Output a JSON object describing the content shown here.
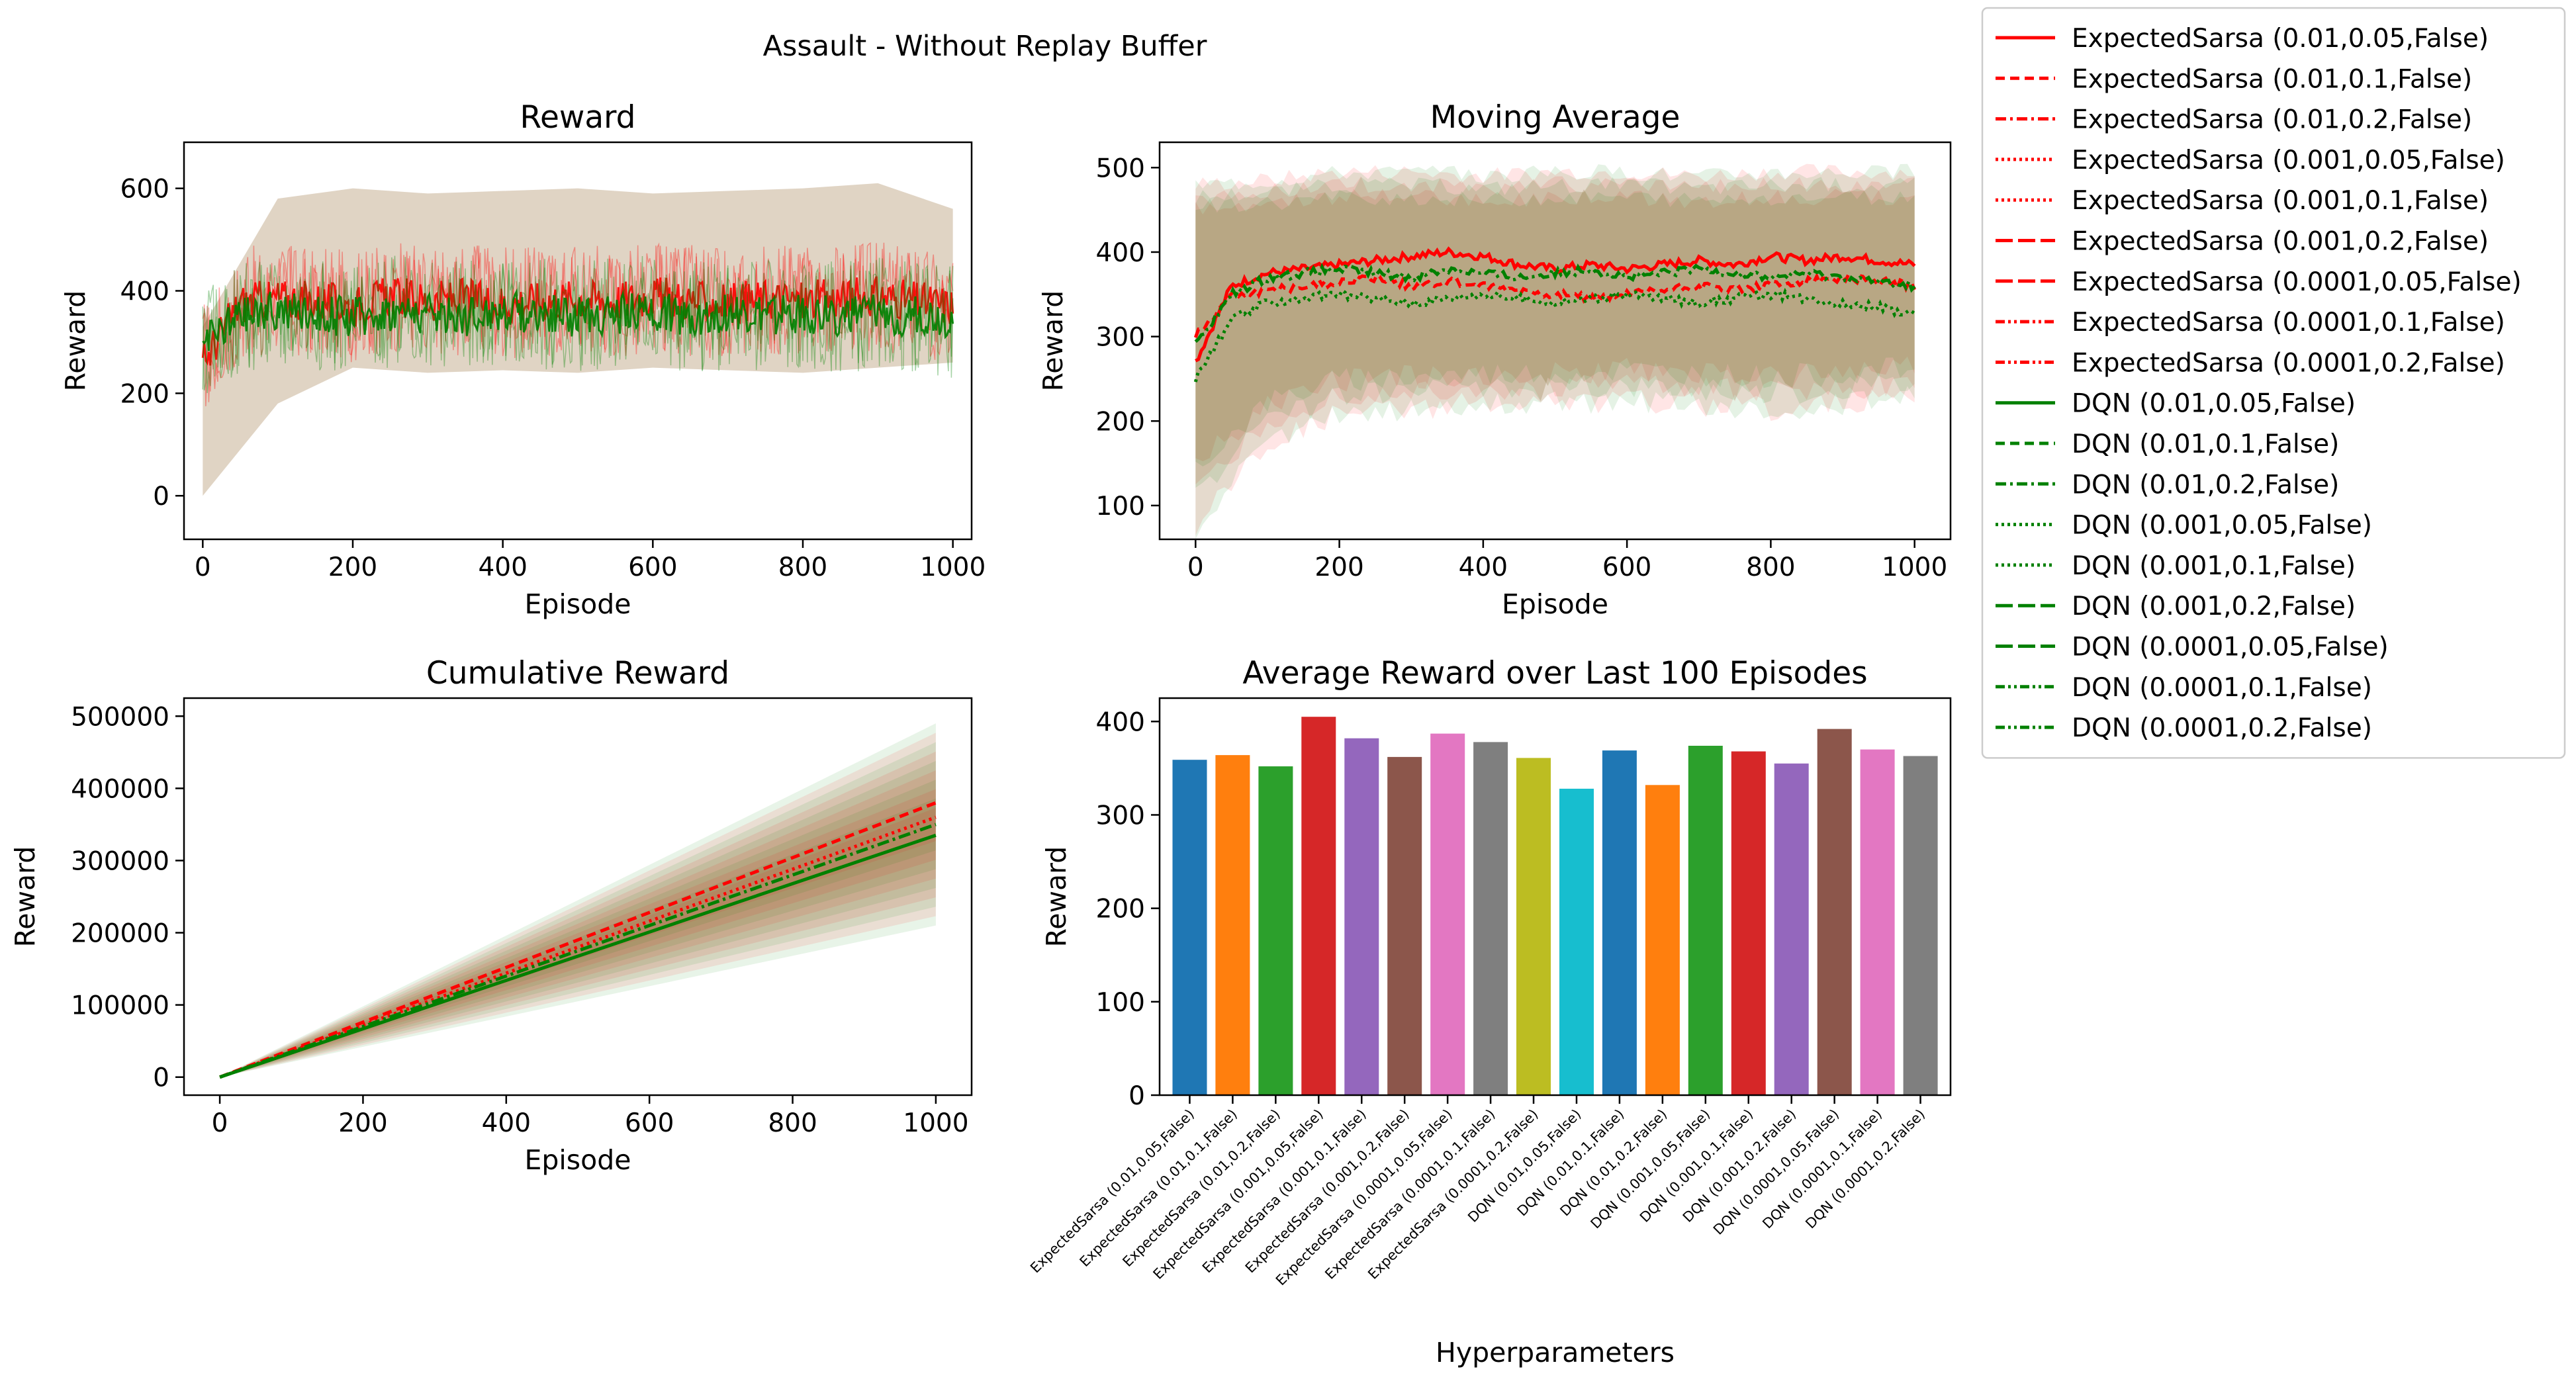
{
  "figure_title": "Assault - Without Replay Buffer",
  "legend": {
    "entries": [
      {
        "label": "ExpectedSarsa (0.01,0.05,False)",
        "color": "#ff0000",
        "dash": "solid"
      },
      {
        "label": "ExpectedSarsa (0.01,0.1,False)",
        "color": "#ff0000",
        "dash": "dashed"
      },
      {
        "label": "ExpectedSarsa (0.01,0.2,False)",
        "color": "#ff0000",
        "dash": "dashdot"
      },
      {
        "label": "ExpectedSarsa (0.001,0.05,False)",
        "color": "#ff0000",
        "dash": "dotted"
      },
      {
        "label": "ExpectedSarsa (0.001,0.1,False)",
        "color": "#ff0000",
        "dash": "dotted"
      },
      {
        "label": "ExpectedSarsa (0.001,0.2,False)",
        "color": "#ff0000",
        "dash": "longdash"
      },
      {
        "label": "ExpectedSarsa (0.0001,0.05,False)",
        "color": "#ff0000",
        "dash": "longdash"
      },
      {
        "label": "ExpectedSarsa (0.0001,0.1,False)",
        "color": "#ff0000",
        "dash": "dashdotdot"
      },
      {
        "label": "ExpectedSarsa (0.0001,0.2,False)",
        "color": "#ff0000",
        "dash": "dashdotdot"
      },
      {
        "label": "DQN (0.01,0.05,False)",
        "color": "#008000",
        "dash": "solid"
      },
      {
        "label": "DQN (0.01,0.1,False)",
        "color": "#008000",
        "dash": "dashed"
      },
      {
        "label": "DQN (0.01,0.2,False)",
        "color": "#008000",
        "dash": "dashdot"
      },
      {
        "label": "DQN (0.001,0.05,False)",
        "color": "#008000",
        "dash": "dotted"
      },
      {
        "label": "DQN (0.001,0.1,False)",
        "color": "#008000",
        "dash": "dotted"
      },
      {
        "label": "DQN (0.001,0.2,False)",
        "color": "#008000",
        "dash": "longdash"
      },
      {
        "label": "DQN (0.0001,0.05,False)",
        "color": "#008000",
        "dash": "longdash"
      },
      {
        "label": "DQN (0.0001,0.1,False)",
        "color": "#008000",
        "dash": "dashdotdot"
      },
      {
        "label": "DQN (0.0001,0.2,False)",
        "color": "#008000",
        "dash": "dashdotdot"
      }
    ]
  },
  "chart_data": [
    {
      "id": "reward",
      "type": "line",
      "title": "Reward",
      "xlabel": "Episode",
      "ylabel": "Reward",
      "xlim": [
        -25,
        1025
      ],
      "ylim": [
        -85,
        690
      ],
      "xticks": [
        0,
        200,
        400,
        600,
        800,
        1000
      ],
      "yticks": [
        0,
        200,
        400,
        600
      ],
      "band_min": [
        0,
        180,
        250,
        240,
        245,
        240,
        250,
        245,
        240,
        250,
        260
      ],
      "band_max": [
        330,
        580,
        600,
        590,
        595,
        600,
        590,
        595,
        600,
        610,
        560
      ],
      "series": [
        {
          "group": "ExpectedSarsa",
          "color": "#ff0000",
          "x": [
            0,
            50,
            100,
            150,
            200,
            250,
            300,
            350,
            400,
            450,
            500,
            550,
            600,
            650,
            700,
            750,
            800,
            850,
            900,
            950,
            1000
          ],
          "y": [
            260,
            375,
            385,
            380,
            370,
            390,
            380,
            385,
            375,
            380,
            385,
            380,
            390,
            380,
            375,
            385,
            380,
            385,
            390,
            380,
            370
          ]
        },
        {
          "group": "DQN",
          "color": "#008000",
          "x": [
            0,
            50,
            100,
            150,
            200,
            250,
            300,
            350,
            400,
            450,
            500,
            550,
            600,
            650,
            700,
            750,
            800,
            850,
            900,
            950,
            1000
          ],
          "y": [
            290,
            350,
            360,
            355,
            350,
            360,
            355,
            350,
            360,
            355,
            350,
            355,
            360,
            350,
            355,
            350,
            355,
            350,
            355,
            350,
            340
          ]
        }
      ]
    },
    {
      "id": "moving_average",
      "type": "line",
      "title": "Moving Average",
      "xlabel": "Episode",
      "ylabel": "Reward",
      "xlim": [
        -50,
        1050
      ],
      "ylim": [
        60,
        530
      ],
      "xticks": [
        0,
        200,
        400,
        600,
        800,
        1000
      ],
      "yticks": [
        100,
        200,
        300,
        400,
        500
      ],
      "band_min": [
        75,
        175,
        210,
        215,
        220,
        220,
        225,
        220,
        215,
        220,
        230
      ],
      "band_max": [
        480,
        485,
        495,
        495,
        490,
        495,
        495,
        490,
        495,
        495,
        495
      ],
      "series": [
        {
          "group": "ExpectedSarsa",
          "color": "#ff0000",
          "x": [
            0,
            50,
            100,
            150,
            200,
            250,
            300,
            350,
            400,
            450,
            500,
            550,
            600,
            650,
            700,
            750,
            800,
            850,
            900,
            950,
            1000
          ],
          "y": [
            270,
            360,
            375,
            380,
            385,
            390,
            395,
            400,
            395,
            385,
            380,
            385,
            380,
            385,
            390,
            385,
            395,
            390,
            395,
            390,
            385
          ]
        },
        {
          "group": "ExpectedSarsa",
          "color": "#ff0000",
          "x": [
            0,
            50,
            100,
            150,
            200,
            250,
            300,
            350,
            400,
            450,
            500,
            550,
            600,
            650,
            700,
            750,
            800,
            850,
            900,
            950,
            1000
          ],
          "y": [
            300,
            350,
            355,
            360,
            365,
            370,
            360,
            365,
            360,
            355,
            350,
            345,
            350,
            355,
            360,
            355,
            360,
            365,
            370,
            365,
            360
          ]
        },
        {
          "group": "DQN",
          "color": "#008000",
          "x": [
            0,
            50,
            100,
            150,
            200,
            250,
            300,
            350,
            400,
            450,
            500,
            550,
            600,
            650,
            700,
            750,
            800,
            850,
            900,
            950,
            1000
          ],
          "y": [
            250,
            320,
            340,
            345,
            350,
            345,
            340,
            345,
            350,
            345,
            340,
            345,
            350,
            345,
            340,
            345,
            350,
            345,
            340,
            335,
            325
          ]
        },
        {
          "group": "DQN",
          "color": "#008000",
          "x": [
            0,
            50,
            100,
            150,
            200,
            250,
            300,
            350,
            400,
            450,
            500,
            550,
            600,
            650,
            700,
            750,
            800,
            850,
            900,
            950,
            1000
          ],
          "y": [
            290,
            350,
            370,
            375,
            380,
            375,
            370,
            380,
            375,
            370,
            375,
            380,
            370,
            375,
            380,
            375,
            370,
            375,
            370,
            365,
            360
          ]
        }
      ]
    },
    {
      "id": "cumulative_reward",
      "type": "line",
      "title": "Cumulative Reward",
      "xlabel": "Episode",
      "ylabel": "Reward",
      "xlim": [
        -50,
        1050
      ],
      "ylim": [
        -25000,
        525000
      ],
      "xticks": [
        0,
        200,
        400,
        600,
        800,
        1000
      ],
      "yticks": [
        0,
        100000,
        200000,
        300000,
        400000,
        500000
      ],
      "band_min_end": 210000,
      "band_max_end": 490000,
      "series": [
        {
          "group": "ExpectedSarsa",
          "color": "#ff0000",
          "x": [
            0,
            1000
          ],
          "y": [
            0,
            380000
          ]
        },
        {
          "group": "ExpectedSarsa",
          "color": "#ff0000",
          "x": [
            0,
            1000
          ],
          "y": [
            0,
            360000
          ]
        },
        {
          "group": "DQN",
          "color": "#008000",
          "x": [
            0,
            1000
          ],
          "y": [
            0,
            335000
          ]
        },
        {
          "group": "DQN",
          "color": "#008000",
          "x": [
            0,
            1000
          ],
          "y": [
            0,
            350000
          ]
        }
      ]
    },
    {
      "id": "average_last_100",
      "type": "bar",
      "title": "Average Reward over Last 100 Episodes",
      "xlabel": "Hyperparameters",
      "ylabel": "Reward",
      "ylim": [
        0,
        425
      ],
      "yticks": [
        0,
        100,
        200,
        300,
        400
      ],
      "categories": [
        "ExpectedSarsa (0.01,0.05,False)",
        "ExpectedSarsa (0.01,0.1,False)",
        "ExpectedSarsa (0.01,0.2,False)",
        "ExpectedSarsa (0.001,0.05,False)",
        "ExpectedSarsa (0.001,0.1,False)",
        "ExpectedSarsa (0.001,0.2,False)",
        "ExpectedSarsa (0.0001,0.05,False)",
        "ExpectedSarsa (0.0001,0.1,False)",
        "ExpectedSarsa (0.0001,0.2,False)",
        "DQN (0.01,0.05,False)",
        "DQN (0.01,0.1,False)",
        "DQN (0.01,0.2,False)",
        "DQN (0.001,0.05,False)",
        "DQN (0.001,0.1,False)",
        "DQN (0.001,0.2,False)",
        "DQN (0.0001,0.05,False)",
        "DQN (0.0001,0.1,False)",
        "DQN (0.0001,0.2,False)"
      ],
      "values": [
        359,
        364,
        352,
        405,
        382,
        362,
        387,
        378,
        361,
        328,
        369,
        332,
        374,
        368,
        355,
        392,
        370,
        363
      ],
      "colors": [
        "#1f77b4",
        "#ff7f0e",
        "#2ca02c",
        "#d62728",
        "#9467bd",
        "#8c564b",
        "#e377c2",
        "#7f7f7f",
        "#bcbd22",
        "#17becf",
        "#1f77b4",
        "#ff7f0e",
        "#2ca02c",
        "#d62728",
        "#9467bd",
        "#8c564b",
        "#e377c2",
        "#7f7f7f"
      ]
    }
  ]
}
